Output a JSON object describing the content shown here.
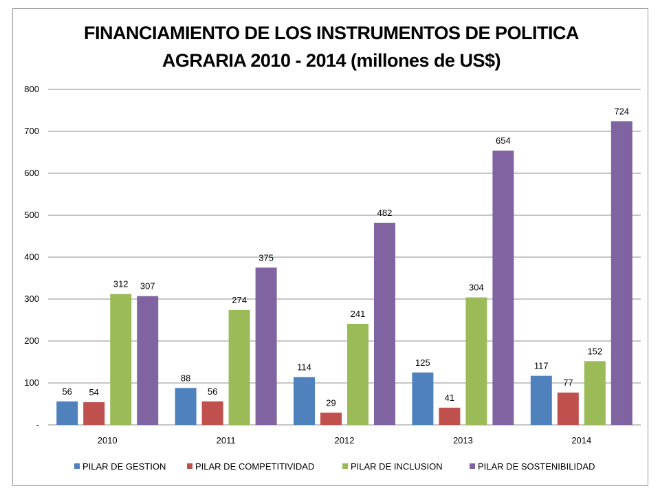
{
  "chart_data": {
    "type": "bar",
    "title_lines": [
      "FINANCIAMIENTO DE LOS INSTRUMENTOS DE POLITICA",
      "AGRARIA  2010 - 2014 (millones de US$)"
    ],
    "categories": [
      "2010",
      "2011",
      "2012",
      "2013",
      "2014"
    ],
    "series": [
      {
        "name": "PILAR DE GESTION",
        "color": "#4f81bd",
        "values": [
          56,
          88,
          114,
          125,
          117
        ]
      },
      {
        "name": "PILAR DE COMPETITIVIDAD",
        "color": "#c0504d",
        "values": [
          54,
          56,
          29,
          41,
          77
        ]
      },
      {
        "name": "PILAR DE INCLUSION",
        "color": "#9bbb59",
        "values": [
          312,
          274,
          241,
          304,
          152
        ]
      },
      {
        "name": "PILAR DE SOSTENIBILIDAD",
        "color": "#8064a2",
        "values": [
          307,
          375,
          482,
          654,
          724
        ]
      }
    ],
    "ylim": [
      0,
      800
    ],
    "yticks": [
      0,
      100,
      200,
      300,
      400,
      500,
      600,
      700,
      800
    ],
    "ytick_labels": [
      "-",
      "100",
      "200",
      "300",
      "400",
      "500",
      "600",
      "700",
      "800"
    ],
    "grid": true,
    "legend_position": "bottom",
    "data_labels": true
  }
}
